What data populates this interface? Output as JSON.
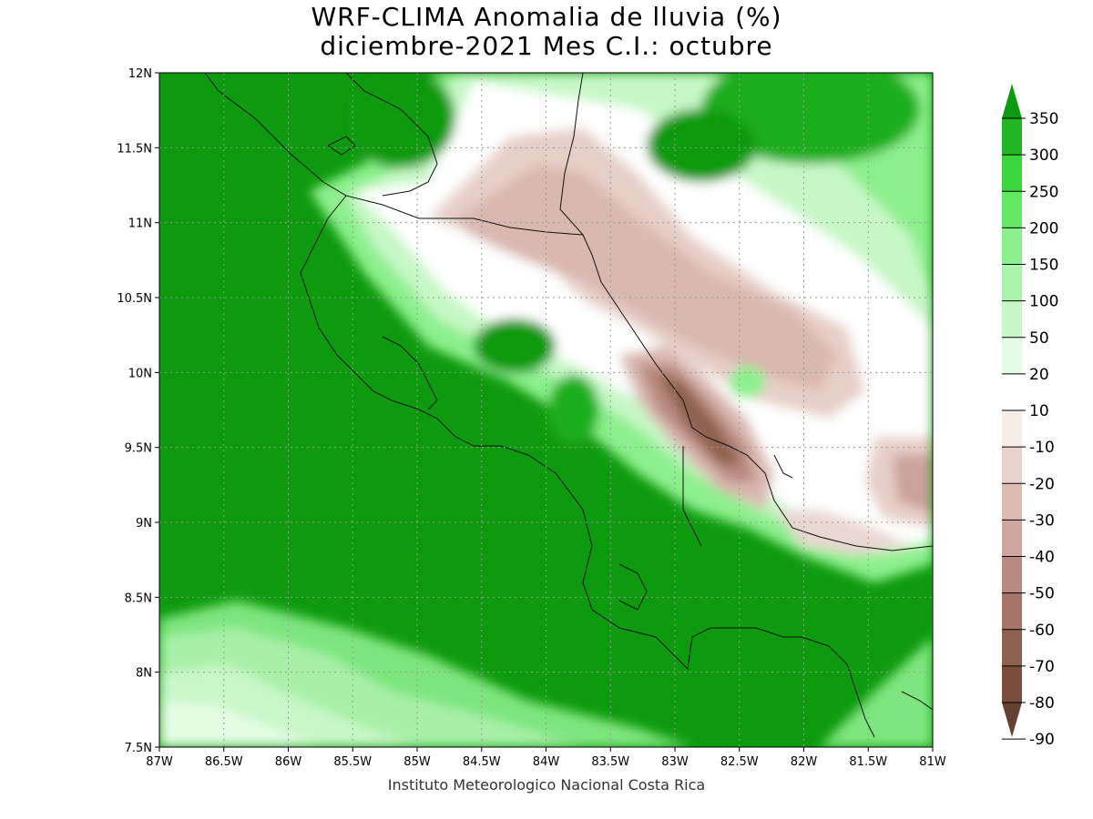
{
  "title_line1": "WRF-CLIMA Anomalia de lluvia (%)",
  "title_line2": "diciembre-2021 Mes C.I.: octubre",
  "footer": "Instituto Meteorologico Nacional Costa Rica",
  "map": {
    "lon_range": [
      -87,
      -81
    ],
    "lat_range": [
      7.5,
      12
    ],
    "x_ticks": [
      "87W",
      "86.5W",
      "86W",
      "85.5W",
      "85W",
      "84.5W",
      "84W",
      "83.5W",
      "83W",
      "82.5W",
      "82W",
      "81.5W",
      "81W"
    ],
    "y_ticks": [
      "7.5N",
      "8N",
      "8.5N",
      "9N",
      "9.5N",
      "10N",
      "10.5N",
      "11N",
      "11.5N",
      "12N"
    ],
    "grid": true
  },
  "colorbar": {
    "labels": [
      "350",
      "300",
      "250",
      "200",
      "150",
      "100",
      "50",
      "20",
      "10",
      "-10",
      "-20",
      "-30",
      "-40",
      "-50",
      "-60",
      "-70",
      "-80",
      "-90"
    ],
    "colors": [
      "#0e9a0e",
      "#22b422",
      "#3dd53d",
      "#62e862",
      "#8cef8c",
      "#aaf3aa",
      "#c7f7c7",
      "#e6fbe6",
      "#ffffff",
      "#f7ece6",
      "#e9d2cc",
      "#dcbbb5",
      "#cfa69f",
      "#b98a80",
      "#a47468",
      "#8e6050",
      "#7a4d3e",
      "#664030"
    ]
  }
}
